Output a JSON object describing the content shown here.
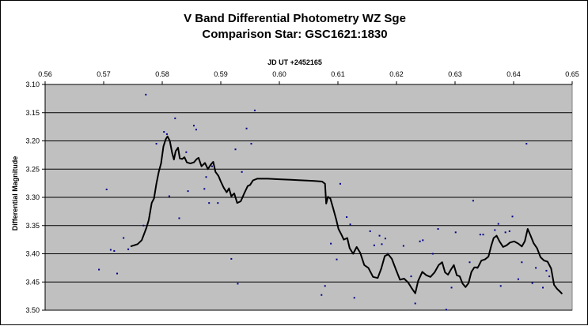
{
  "chart_data": {
    "type": "scatter",
    "title": "V Band Differential Photometry WZ Sge",
    "subtitle": "Comparison Star: GSC1621:1830",
    "xlabel": "JD UT +2452165",
    "ylabel": "Differential Magnitude",
    "xlim": [
      0.56,
      0.65
    ],
    "ylim": [
      3.1,
      3.5
    ],
    "y_inverted": true,
    "x_axis_position": "top",
    "x_ticks": [
      "0.56",
      "0.57",
      "0.58",
      "0.59",
      "0.60",
      "0.61",
      "0.62",
      "0.63",
      "0.64",
      "0.65"
    ],
    "y_ticks": [
      "3.10",
      "3.15",
      "3.20",
      "3.25",
      "3.30",
      "3.35",
      "3.40",
      "3.45",
      "3.50"
    ],
    "grid": "horizontal",
    "plot_background": "#c0c0c0",
    "series": [
      {
        "type": "scatter",
        "color": "#00008b",
        "points": [
          [
            0.5692,
            3.428
          ],
          [
            0.5705,
            3.286
          ],
          [
            0.5712,
            3.393
          ],
          [
            0.5718,
            3.395
          ],
          [
            0.5723,
            3.435
          ],
          [
            0.5734,
            3.372
          ],
          [
            0.5742,
            3.392
          ],
          [
            0.5768,
            3.35
          ],
          [
            0.5772,
            3.118
          ],
          [
            0.579,
            3.205
          ],
          [
            0.5803,
            3.184
          ],
          [
            0.5808,
            3.188
          ],
          [
            0.5812,
            3.298
          ],
          [
            0.5822,
            3.16
          ],
          [
            0.5829,
            3.337
          ],
          [
            0.5841,
            3.22
          ],
          [
            0.5844,
            3.289
          ],
          [
            0.5854,
            3.173
          ],
          [
            0.5858,
            3.18
          ],
          [
            0.5872,
            3.285
          ],
          [
            0.5875,
            3.264
          ],
          [
            0.588,
            3.31
          ],
          [
            0.5885,
            3.245
          ],
          [
            0.5895,
            3.31
          ],
          [
            0.5918,
            3.409
          ],
          [
            0.5925,
            3.215
          ],
          [
            0.5929,
            3.453
          ],
          [
            0.5936,
            3.255
          ],
          [
            0.5944,
            3.178
          ],
          [
            0.5952,
            3.205
          ],
          [
            0.5958,
            3.146
          ],
          [
            0.6072,
            3.473
          ],
          [
            0.6078,
            3.457
          ],
          [
            0.6088,
            3.382
          ],
          [
            0.6098,
            3.41
          ],
          [
            0.6104,
            3.276
          ],
          [
            0.6115,
            3.335
          ],
          [
            0.6121,
            3.348
          ],
          [
            0.6128,
            3.478
          ],
          [
            0.6155,
            3.36
          ],
          [
            0.6162,
            3.385
          ],
          [
            0.6171,
            3.368
          ],
          [
            0.6175,
            3.383
          ],
          [
            0.6181,
            3.373
          ],
          [
            0.6185,
            3.4
          ],
          [
            0.6212,
            3.386
          ],
          [
            0.6225,
            3.44
          ],
          [
            0.6232,
            3.488
          ],
          [
            0.624,
            3.378
          ],
          [
            0.6245,
            3.376
          ],
          [
            0.6262,
            3.4
          ],
          [
            0.6271,
            3.356
          ],
          [
            0.6285,
            3.499
          ],
          [
            0.6294,
            3.46
          ],
          [
            0.6301,
            3.362
          ],
          [
            0.6325,
            3.415
          ],
          [
            0.6331,
            3.306
          ],
          [
            0.6338,
            3.425
          ],
          [
            0.6343,
            3.366
          ],
          [
            0.6348,
            3.366
          ],
          [
            0.6368,
            3.358
          ],
          [
            0.6374,
            3.347
          ],
          [
            0.6378,
            3.457
          ],
          [
            0.6386,
            3.362
          ],
          [
            0.6393,
            3.36
          ],
          [
            0.6398,
            3.334
          ],
          [
            0.6408,
            3.445
          ],
          [
            0.6414,
            3.415
          ],
          [
            0.6422,
            3.205
          ],
          [
            0.6432,
            3.452
          ],
          [
            0.6438,
            3.425
          ],
          [
            0.645,
            3.46
          ],
          [
            0.6456,
            3.43
          ],
          [
            0.6461,
            3.44
          ]
        ]
      },
      {
        "type": "line",
        "color": "#000000",
        "points": [
          [
            0.5746,
            3.387
          ],
          [
            0.5758,
            3.383
          ],
          [
            0.5765,
            3.376
          ],
          [
            0.5773,
            3.354
          ],
          [
            0.5777,
            3.34
          ],
          [
            0.5782,
            3.31
          ],
          [
            0.5786,
            3.302
          ],
          [
            0.579,
            3.276
          ],
          [
            0.5794,
            3.255
          ],
          [
            0.5798,
            3.24
          ],
          [
            0.5802,
            3.21
          ],
          [
            0.5806,
            3.197
          ],
          [
            0.5809,
            3.192
          ],
          [
            0.5813,
            3.2
          ],
          [
            0.5817,
            3.222
          ],
          [
            0.582,
            3.233
          ],
          [
            0.5823,
            3.218
          ],
          [
            0.5827,
            3.212
          ],
          [
            0.583,
            3.231
          ],
          [
            0.5834,
            3.232
          ],
          [
            0.5838,
            3.229
          ],
          [
            0.5842,
            3.238
          ],
          [
            0.5848,
            3.24
          ],
          [
            0.5854,
            3.238
          ],
          [
            0.5859,
            3.232
          ],
          [
            0.5862,
            3.23
          ],
          [
            0.5867,
            3.245
          ],
          [
            0.5873,
            3.239
          ],
          [
            0.5878,
            3.25
          ],
          [
            0.5883,
            3.242
          ],
          [
            0.5887,
            3.237
          ],
          [
            0.5891,
            3.255
          ],
          [
            0.5896,
            3.262
          ],
          [
            0.59,
            3.272
          ],
          [
            0.5905,
            3.283
          ],
          [
            0.591,
            3.291
          ],
          [
            0.5914,
            3.284
          ],
          [
            0.5918,
            3.298
          ],
          [
            0.5923,
            3.293
          ],
          [
            0.5928,
            3.31
          ],
          [
            0.5934,
            3.307
          ],
          [
            0.594,
            3.293
          ],
          [
            0.5946,
            3.28
          ],
          [
            0.595,
            3.278
          ],
          [
            0.5955,
            3.27
          ],
          [
            0.5962,
            3.267
          ],
          [
            0.598,
            3.267
          ],
          [
            0.6,
            3.268
          ],
          [
            0.602,
            3.269
          ],
          [
            0.604,
            3.27
          ],
          [
            0.606,
            3.271
          ],
          [
            0.6073,
            3.272
          ],
          [
            0.6078,
            3.276
          ],
          [
            0.608,
            3.311
          ],
          [
            0.6083,
            3.299
          ],
          [
            0.6087,
            3.302
          ],
          [
            0.6092,
            3.32
          ],
          [
            0.6097,
            3.339
          ],
          [
            0.6101,
            3.356
          ],
          [
            0.6106,
            3.366
          ],
          [
            0.611,
            3.375
          ],
          [
            0.6116,
            3.372
          ],
          [
            0.612,
            3.39
          ],
          [
            0.6126,
            3.4
          ],
          [
            0.6132,
            3.388
          ],
          [
            0.6138,
            3.398
          ],
          [
            0.6145,
            3.42
          ],
          [
            0.6152,
            3.425
          ],
          [
            0.616,
            3.441
          ],
          [
            0.6168,
            3.443
          ],
          [
            0.6174,
            3.426
          ],
          [
            0.618,
            3.404
          ],
          [
            0.6186,
            3.401
          ],
          [
            0.6192,
            3.409
          ],
          [
            0.6199,
            3.428
          ],
          [
            0.6206,
            3.446
          ],
          [
            0.6213,
            3.444
          ],
          [
            0.622,
            3.451
          ],
          [
            0.6226,
            3.461
          ],
          [
            0.6232,
            3.47
          ],
          [
            0.6237,
            3.448
          ],
          [
            0.6244,
            3.432
          ],
          [
            0.6251,
            3.438
          ],
          [
            0.6258,
            3.441
          ],
          [
            0.6265,
            3.433
          ],
          [
            0.6272,
            3.42
          ],
          [
            0.6278,
            3.415
          ],
          [
            0.6283,
            3.433
          ],
          [
            0.6288,
            3.437
          ],
          [
            0.6293,
            3.428
          ],
          [
            0.6298,
            3.42
          ],
          [
            0.6303,
            3.438
          ],
          [
            0.6308,
            3.44
          ],
          [
            0.6313,
            3.453
          ],
          [
            0.6318,
            3.459
          ],
          [
            0.6323,
            3.452
          ],
          [
            0.6328,
            3.432
          ],
          [
            0.6333,
            3.424
          ],
          [
            0.6339,
            3.424
          ],
          [
            0.6345,
            3.412
          ],
          [
            0.6351,
            3.41
          ],
          [
            0.6357,
            3.405
          ],
          [
            0.6362,
            3.385
          ],
          [
            0.6366,
            3.372
          ],
          [
            0.6371,
            3.368
          ],
          [
            0.6376,
            3.378
          ],
          [
            0.6382,
            3.388
          ],
          [
            0.6388,
            3.385
          ],
          [
            0.6394,
            3.38
          ],
          [
            0.6401,
            3.378
          ],
          [
            0.6408,
            3.382
          ],
          [
            0.6414,
            3.387
          ],
          [
            0.6419,
            3.378
          ],
          [
            0.6424,
            3.356
          ],
          [
            0.6429,
            3.368
          ],
          [
            0.6434,
            3.381
          ],
          [
            0.644,
            3.39
          ],
          [
            0.6446,
            3.406
          ],
          [
            0.6452,
            3.412
          ],
          [
            0.6458,
            3.414
          ],
          [
            0.6464,
            3.426
          ],
          [
            0.6469,
            3.455
          ],
          [
            0.6474,
            3.462
          ],
          [
            0.6479,
            3.467
          ],
          [
            0.6483,
            3.471
          ]
        ]
      }
    ]
  }
}
